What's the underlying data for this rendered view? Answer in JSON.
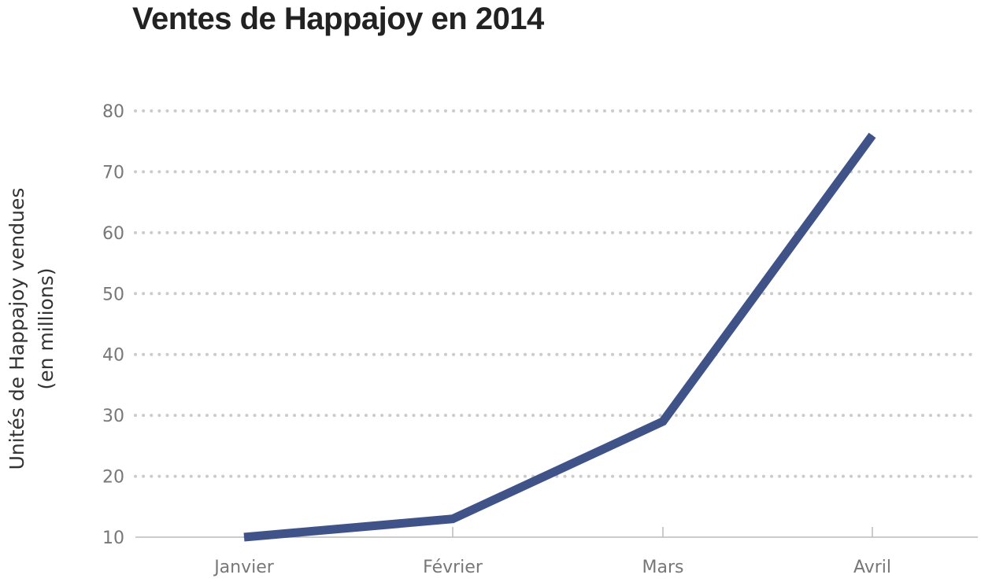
{
  "chart_data": {
    "type": "line",
    "title": "Ventes de Happajoy en 2014",
    "ylabel_lines": [
      "Unités de Happajoy vendues",
      "(en millions)"
    ],
    "xlabel": "",
    "categories": [
      "Janvier",
      "Février",
      "Mars",
      "Avril"
    ],
    "series": [
      {
        "values": [
          10,
          13,
          29,
          76
        ]
      }
    ],
    "ylim": [
      10,
      80
    ],
    "yticks": [
      10,
      20,
      30,
      40,
      50,
      60,
      70,
      80
    ],
    "grid": "horizontal-dotted",
    "legend": "none",
    "line_color": "#3f5388",
    "grid_color": "#cccccc",
    "axis_color": "#bbbbbb",
    "tick_color": "#777777"
  }
}
